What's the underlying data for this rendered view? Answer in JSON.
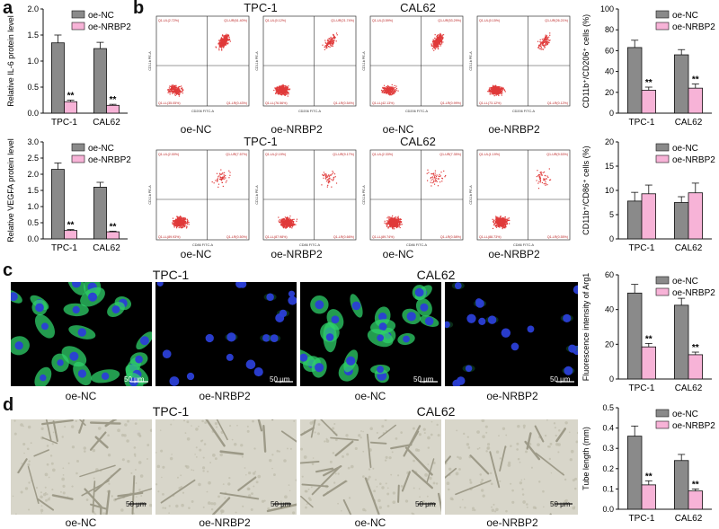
{
  "panels": {
    "a": "a",
    "b": "b",
    "c": "c",
    "d": "d"
  },
  "colors": {
    "nc": "#8a8a8a",
    "nrbp2": "#f7b3d7",
    "fluor_green": "#2fd06a",
    "fluor_blue": "#2b3fd6",
    "flow_red": "#e03a3a"
  },
  "groups": {
    "tpc1": "TPC-1",
    "cal62": "CAL62"
  },
  "conditions": {
    "nc": "oe-NC",
    "nrbp2": "oe-NRBP2"
  },
  "scalebar": "50 μm",
  "flow_quadrants_row1": [
    {
      "ul": "Q1-UL(2.72%)",
      "ur": "Q1-UR(61.40%)",
      "ll": "Q1-LL(35.05%)",
      "lr": "Q1-LR(0.43%)",
      "xaxis": "CD206 FITC-A",
      "yaxis": "CD11b PE-A"
    },
    {
      "ul": "Q1-UL(0.12%)",
      "ur": "Q1-UR(21.74%)",
      "ll": "Q1-LL(76.56%)",
      "lr": "Q1-LR(0.54%)",
      "xaxis": "CD206 FITC-A",
      "yaxis": "CD11b PE-A"
    },
    {
      "ul": "Q1-UL(3.59%)",
      "ur": "Q1-UR(53.29%)",
      "ll": "Q1-LL(42.13%)",
      "lr": "Q1-LR(0.99%)",
      "xaxis": "CD206 FITC-A",
      "yaxis": "CD11b PE-A"
    },
    {
      "ul": "Q1-UL(0.15%)",
      "ur": "Q1-UR(26.21%)",
      "ll": "Q1-LL(73.12%)",
      "lr": "Q1-LR(0.12%)",
      "xaxis": "CD206 FITC-A",
      "yaxis": "CD11b PE-A"
    }
  ],
  "flow_quadrants_row2": [
    {
      "ul": "Q1-UL(2.00%)",
      "ur": "Q1-UR(7.57%)",
      "ll": "Q1-LL(89.93%)",
      "lr": "Q1-LR(0.50%)",
      "xaxis": "CD86 FITC-A",
      "yaxis": "CD11b PE-A"
    },
    {
      "ul": "Q1-UL(2.19%)",
      "ur": "Q1-UR(9.17%)",
      "ll": "Q1-LL(87.98%)",
      "lr": "Q1-LR(0.66%)",
      "xaxis": "CD86 FITC-A",
      "yaxis": "CD11b PE-A"
    },
    {
      "ul": "Q1-UL(2.33%)",
      "ur": "Q1-UR(7.35%)",
      "ll": "Q1-LL(89.74%)",
      "lr": "Q1-LR(0.58%)",
      "xaxis": "CD86 FITC-A",
      "yaxis": "CD11b PE-A"
    },
    {
      "ul": "Q1-UL(1.19%)",
      "ur": "Q1-UR(9.53%)",
      "ll": "Q1-LL(88.73%)",
      "lr": "Q1-LR(0.55%)",
      "xaxis": "CD86 FITC-A",
      "yaxis": "CD11b PE-A"
    }
  ],
  "chart_data": [
    {
      "id": "a1",
      "type": "bar",
      "categories": [
        "TPC-1",
        "CAL62"
      ],
      "series": [
        {
          "name": "oe-NC",
          "values": [
            1.35,
            1.24
          ],
          "errors": [
            0.15,
            0.12
          ]
        },
        {
          "name": "oe-NRBP2",
          "values": [
            0.22,
            0.15
          ],
          "errors": [
            0.03,
            0.02
          ]
        }
      ],
      "ylabel": "Relative IL-6 protein level",
      "ylim": [
        0,
        2.0
      ],
      "yticks": [
        "0.0",
        "0.5",
        "1.0",
        "1.5",
        "2.0"
      ],
      "yvals": [
        0,
        0.5,
        1.0,
        1.5,
        2.0
      ],
      "sig": [
        "**",
        "**"
      ],
      "legend": "top-right"
    },
    {
      "id": "a2",
      "type": "bar",
      "categories": [
        "TPC-1",
        "CAL62"
      ],
      "series": [
        {
          "name": "oe-NC",
          "values": [
            2.15,
            1.6
          ],
          "errors": [
            0.2,
            0.15
          ]
        },
        {
          "name": "oe-NRBP2",
          "values": [
            0.26,
            0.22
          ],
          "errors": [
            0.03,
            0.02
          ]
        }
      ],
      "ylabel": "Relative VEGFA protein level",
      "ylim": [
        0,
        3.0
      ],
      "yticks": [
        "0.0",
        "0.5",
        "1.0",
        "1.5",
        "2.0",
        "2.5",
        "3.0"
      ],
      "yvals": [
        0,
        0.5,
        1.0,
        1.5,
        2.0,
        2.5,
        3.0
      ],
      "sig": [
        "**",
        "**"
      ],
      "legend": "top-right"
    },
    {
      "id": "b1",
      "type": "bar",
      "categories": [
        "TPC-1",
        "CAL62"
      ],
      "series": [
        {
          "name": "oe-NC",
          "values": [
            63,
            56
          ],
          "errors": [
            7,
            5
          ]
        },
        {
          "name": "oe-NRBP2",
          "values": [
            22,
            24
          ],
          "errors": [
            3,
            4
          ]
        }
      ],
      "ylabel": "CD11b⁺/CD206⁺ cells (%)",
      "ylim": [
        0,
        100
      ],
      "yticks": [
        "0",
        "20",
        "40",
        "60",
        "80",
        "100"
      ],
      "yvals": [
        0,
        20,
        40,
        60,
        80,
        100
      ],
      "sig": [
        "**",
        "**"
      ],
      "legend": "top-right"
    },
    {
      "id": "b2",
      "type": "bar",
      "categories": [
        "TPC-1",
        "CAL62"
      ],
      "series": [
        {
          "name": "oe-NC",
          "values": [
            7.8,
            7.5
          ],
          "errors": [
            1.8,
            1.2
          ]
        },
        {
          "name": "oe-NRBP2",
          "values": [
            9.3,
            9.5
          ],
          "errors": [
            1.8,
            2.0
          ]
        }
      ],
      "ylabel": "CD11b⁺/CD86⁺ cells (%)",
      "ylim": [
        0,
        20
      ],
      "yticks": [
        "0",
        "5",
        "10",
        "15",
        "20"
      ],
      "yvals": [
        0,
        5,
        10,
        15,
        20
      ],
      "sig": [
        "",
        ""
      ],
      "legend": "top-right"
    },
    {
      "id": "c",
      "type": "bar",
      "categories": [
        "TPC-1",
        "CAL62"
      ],
      "series": [
        {
          "name": "oe-NC",
          "values": [
            49.5,
            42.5
          ],
          "errors": [
            5,
            4
          ]
        },
        {
          "name": "oe-NRBP2",
          "values": [
            18.5,
            14
          ],
          "errors": [
            2,
            1.5
          ]
        }
      ],
      "ylabel": "Fluorescence intensity of Arg1",
      "ylim": [
        0,
        60
      ],
      "yticks": [
        "0",
        "20",
        "40",
        "60"
      ],
      "yvals": [
        0,
        20,
        40,
        60
      ],
      "sig": [
        "**",
        "**"
      ],
      "legend": "top-right"
    },
    {
      "id": "d",
      "type": "bar",
      "categories": [
        "TPC-1",
        "CAL62"
      ],
      "series": [
        {
          "name": "oe-NC",
          "values": [
            0.36,
            0.24
          ],
          "errors": [
            0.05,
            0.03
          ]
        },
        {
          "name": "oe-NRBP2",
          "values": [
            0.12,
            0.09
          ],
          "errors": [
            0.02,
            0.01
          ]
        }
      ],
      "ylabel": "Tube length (mm)",
      "ylim": [
        0,
        0.5
      ],
      "yticks": [
        "0.0",
        "0.1",
        "0.2",
        "0.3",
        "0.4",
        "0.5"
      ],
      "yvals": [
        0,
        0.1,
        0.2,
        0.3,
        0.4,
        0.5
      ],
      "sig": [
        "**",
        "**"
      ],
      "legend": "top-right"
    }
  ]
}
